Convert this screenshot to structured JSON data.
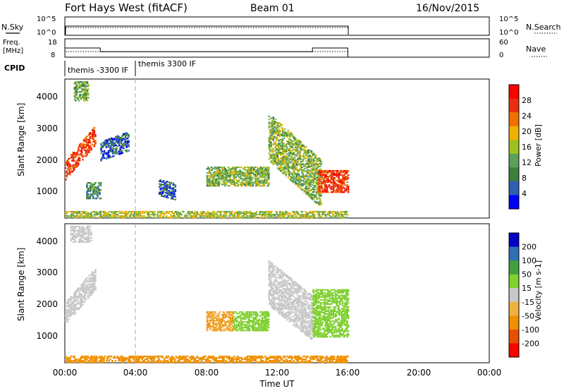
{
  "header": {
    "station": "Fort Hays West (fitACF)",
    "beam": "Beam 01",
    "date": "16/Nov/2015"
  },
  "top_panels": {
    "nsky": {
      "label": "N.Sky",
      "left_ticks": [
        "10^5",
        "10^0"
      ],
      "right_ticks": [
        "10^5",
        "10^0"
      ],
      "right_label": "N.Search"
    },
    "freq": {
      "label_line1": "Freq.",
      "label_line2": "[MHz]",
      "left_ticks": [
        "18",
        "8"
      ],
      "right_ticks": [
        "60",
        "0"
      ],
      "right_label": "Nave"
    },
    "cpid": {
      "label": "CPID",
      "modes": [
        "themis -3300 IF",
        "themis 3300 IF"
      ]
    }
  },
  "x_axis": {
    "label": "Time UT",
    "ticks": [
      "00:00",
      "04:00",
      "08:00",
      "12:00",
      "16:00",
      "20:00",
      "00:00"
    ]
  },
  "power_panel": {
    "ylabel": "Slant Range [km]",
    "y_ticks": [
      "4000",
      "3000",
      "2000",
      "1000"
    ],
    "colorbar_label": "Power [dB]",
    "colorbar_ticks": [
      "28",
      "24",
      "20",
      "16",
      "12",
      "8",
      "4"
    ]
  },
  "velocity_panel": {
    "ylabel": "Slant Range [km]",
    "y_ticks": [
      "4000",
      "3000",
      "2000",
      "1000"
    ],
    "colorbar_label": "Velocity [m s-1]",
    "colorbar_ticks": [
      "200",
      "100",
      "50",
      "15",
      "-15",
      "-50",
      "-100",
      "-200"
    ]
  },
  "colors": {
    "power_scale": [
      "#0000ff",
      "#2e5fb4",
      "#3d7f3d",
      "#5aa05a",
      "#a0c020",
      "#f0b000",
      "#f07000",
      "#e83010",
      "#ff0000"
    ],
    "velocity_scale": [
      "#ff0000",
      "#e85000",
      "#f09000",
      "#f0b040",
      "#c8c8c8",
      "#80d030",
      "#40a040",
      "#2e6fb4",
      "#0000c8"
    ]
  },
  "chart_data": {
    "type": "heatmap",
    "x_range_hours": [
      0,
      24
    ],
    "y_range_km": [
      200,
      4600
    ],
    "data_end_hours": 16,
    "cpid_change_hours": 4,
    "freq_mhz": {
      "segments": [
        {
          "start": 0,
          "end": 2,
          "value": 13
        },
        {
          "start": 2,
          "end": 14,
          "value": 11
        },
        {
          "start": 14,
          "end": 16,
          "value": 13
        }
      ]
    },
    "power_regions": [
      {
        "t0": 0.0,
        "t1": 1.7,
        "r0": 1400,
        "r1": 2000,
        "slope": 650,
        "power": 26
      },
      {
        "t0": 0.5,
        "t1": 1.3,
        "r0": 3900,
        "r1": 4500,
        "slope": 0,
        "power": 12
      },
      {
        "t0": 1.2,
        "t1": 2.0,
        "r0": 800,
        "r1": 1300,
        "slope": 0,
        "power": 10
      },
      {
        "t0": 2.0,
        "t1": 3.6,
        "r0": 2000,
        "r1": 2600,
        "slope": 200,
        "power": 6
      },
      {
        "t0": 5.3,
        "t1": 6.2,
        "r0": 900,
        "r1": 1400,
        "slope": -150,
        "power": 6
      },
      {
        "t0": 8.0,
        "t1": 11.5,
        "r0": 1200,
        "r1": 1800,
        "slope": 0,
        "power": 14
      },
      {
        "t0": 11.5,
        "t1": 14.5,
        "r0": 2000,
        "r1": 3500,
        "slope": -500,
        "power": 14
      },
      {
        "t0": 14.3,
        "t1": 16.0,
        "r0": 1000,
        "r1": 1700,
        "slope": 0,
        "power": 26
      },
      {
        "t0": 0.0,
        "t1": 16.0,
        "r0": 200,
        "r1": 400,
        "slope": 0,
        "power": 16
      }
    ],
    "velocity_regions": [
      {
        "t0": 0.0,
        "t1": 1.7,
        "r0": 1400,
        "r1": 2100,
        "slope": 650,
        "velocity": 0
      },
      {
        "t0": 0.3,
        "t1": 1.5,
        "r0": 4000,
        "r1": 4500,
        "slope": 0,
        "velocity": 0
      },
      {
        "t0": 8.0,
        "t1": 9.5,
        "r0": 1200,
        "r1": 1800,
        "slope": 0,
        "velocity": -50
      },
      {
        "t0": 9.5,
        "t1": 11.5,
        "r0": 1200,
        "r1": 1800,
        "slope": 0,
        "velocity": 30
      },
      {
        "t0": 11.5,
        "t1": 14.0,
        "r0": 2000,
        "r1": 3400,
        "slope": -450,
        "velocity": 0
      },
      {
        "t0": 14.0,
        "t1": 16.0,
        "r0": 1000,
        "r1": 2500,
        "slope": 0,
        "velocity": 20
      },
      {
        "t0": 0.0,
        "t1": 16.0,
        "r0": 200,
        "r1": 400,
        "slope": 0,
        "velocity": -60
      }
    ]
  }
}
